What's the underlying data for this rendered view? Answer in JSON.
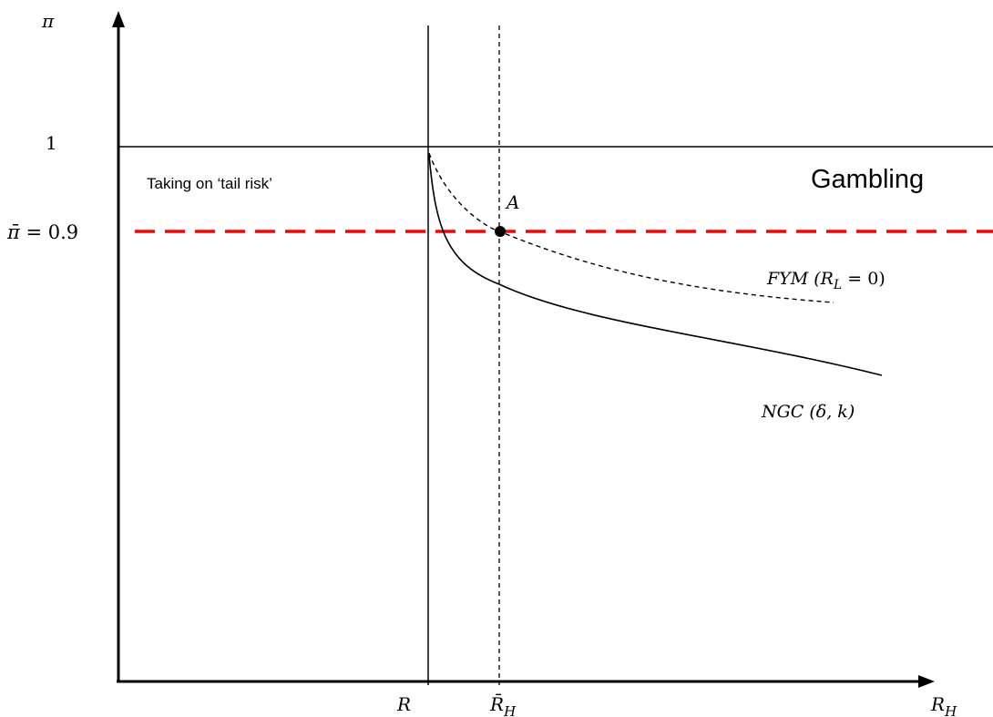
{
  "axes": {
    "y_axis_label": "π",
    "x_axis_label_base": "R",
    "x_axis_label_sub": "H"
  },
  "y_ticks": {
    "one": "1",
    "pi_bar_lhs": "π̄",
    "pi_bar_rhs": " = 0.9"
  },
  "x_ticks": {
    "r": "R",
    "r_h_bar_base": "R̄",
    "r_h_bar_sub": "H"
  },
  "regions": {
    "tail_risk": "Taking on ‘tail risk’",
    "gambling": "Gambling"
  },
  "point_a": "A",
  "curves": {
    "fym_prefix": "FYM (",
    "fym_sub_base": "R",
    "fym_sub": "L",
    "fym_suffix": " = 0)",
    "ngc": "NGC (δ, k)"
  },
  "colors": {
    "threshold_line": "#ff0000",
    "lines": "#000000"
  }
}
